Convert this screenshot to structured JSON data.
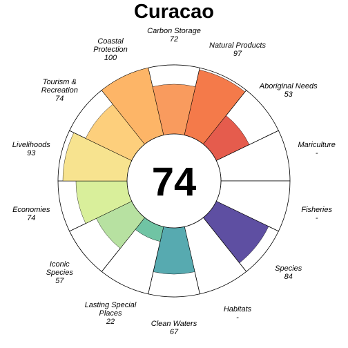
{
  "chart_data": {
    "type": "flower-plot",
    "title": "Curacao",
    "center_score": "74",
    "score_range": [
      0,
      100
    ],
    "petals": [
      {
        "lines": [
          "Carbon Storage"
        ],
        "score_text": "72",
        "value": 72,
        "color": "#F99B5E"
      },
      {
        "lines": [
          "Natural Products"
        ],
        "score_text": "97",
        "value": 97,
        "color": "#F47A4A"
      },
      {
        "lines": [
          "Aboriginal Needs"
        ],
        "score_text": "53",
        "value": 53,
        "color": "#E55C4D"
      },
      {
        "lines": [
          "Mariculture"
        ],
        "score_text": "-",
        "value": null,
        "color": "#D53E4F"
      },
      {
        "lines": [
          "Fisheries"
        ],
        "score_text": "-",
        "value": null,
        "color": "#8E2D56"
      },
      {
        "lines": [
          "Species"
        ],
        "score_text": "84",
        "value": 84,
        "color": "#5E4FA2"
      },
      {
        "lines": [
          "Habitats"
        ],
        "score_text": "-",
        "value": null,
        "color": "#4577B4"
      },
      {
        "lines": [
          "Clean Waters"
        ],
        "score_text": "67",
        "value": 67,
        "color": "#57AAB0"
      },
      {
        "lines": [
          "Lasting Special",
          "Places"
        ],
        "score_text": "22",
        "value": 22,
        "color": "#70C4A4"
      },
      {
        "lines": [
          "Iconic",
          "Species"
        ],
        "score_text": "57",
        "value": 57,
        "color": "#B7E1A1"
      },
      {
        "lines": [
          "Economies"
        ],
        "score_text": "74",
        "value": 74,
        "color": "#D9EF9B"
      },
      {
        "lines": [
          "Livelihoods"
        ],
        "score_text": "93",
        "value": 93,
        "color": "#F7E38F"
      },
      {
        "lines": [
          "Tourism &",
          "Recreation"
        ],
        "score_text": "74",
        "value": 74,
        "color": "#FDCF7C"
      },
      {
        "lines": [
          "Coastal",
          "Protection"
        ],
        "score_text": "100",
        "value": 100,
        "color": "#FDB567"
      }
    ]
  }
}
